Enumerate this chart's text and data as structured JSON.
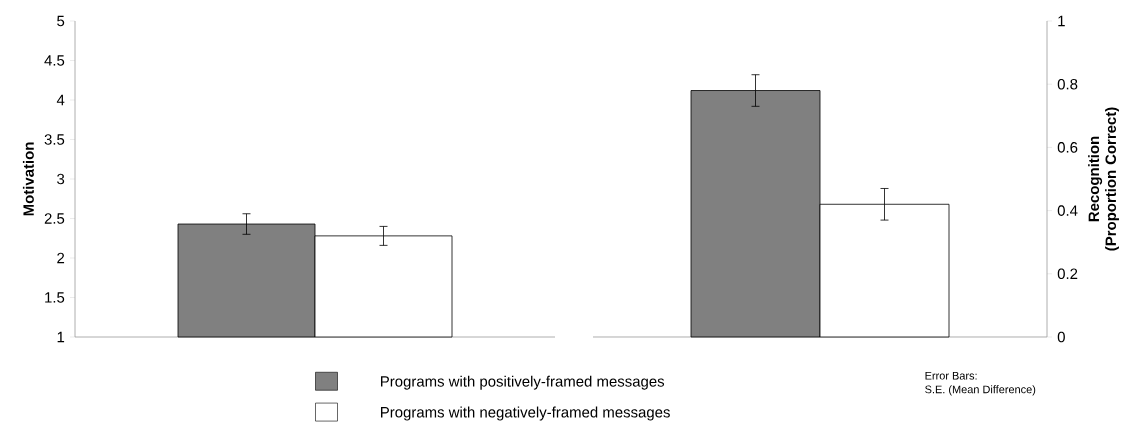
{
  "chart_data": [
    {
      "type": "bar",
      "ylabel": "Motivation",
      "categories": [
        null
      ],
      "ylim": [
        1,
        5
      ],
      "yticks": [
        1,
        1.5,
        2,
        2.5,
        3,
        3.5,
        4,
        4.5,
        5
      ],
      "legend": "bottom",
      "series": [
        {
          "name": "Programs with positively-framed messages",
          "color": "#808080",
          "values": [
            2.43
          ],
          "errors": [
            0.13
          ]
        },
        {
          "name": "Programs with negatively-framed messages",
          "color": "#ffffff",
          "values": [
            2.28
          ],
          "errors": [
            0.12
          ]
        }
      ]
    },
    {
      "type": "bar",
      "ylabel": "Recognition (Proportion Correct)",
      "categories": [
        null
      ],
      "ylim": [
        0,
        1
      ],
      "yticks": [
        0,
        0.2,
        0.4,
        0.6,
        0.8,
        1
      ],
      "annotations": [
        "Error Bars:",
        "S.E. (Mean Difference)"
      ],
      "series": [
        {
          "color": "#808080",
          "values": [
            0.78
          ],
          "errors": [
            0.05
          ]
        },
        {
          "color": "#ffffff",
          "values": [
            0.42
          ],
          "errors": [
            0.05
          ]
        }
      ]
    }
  ]
}
